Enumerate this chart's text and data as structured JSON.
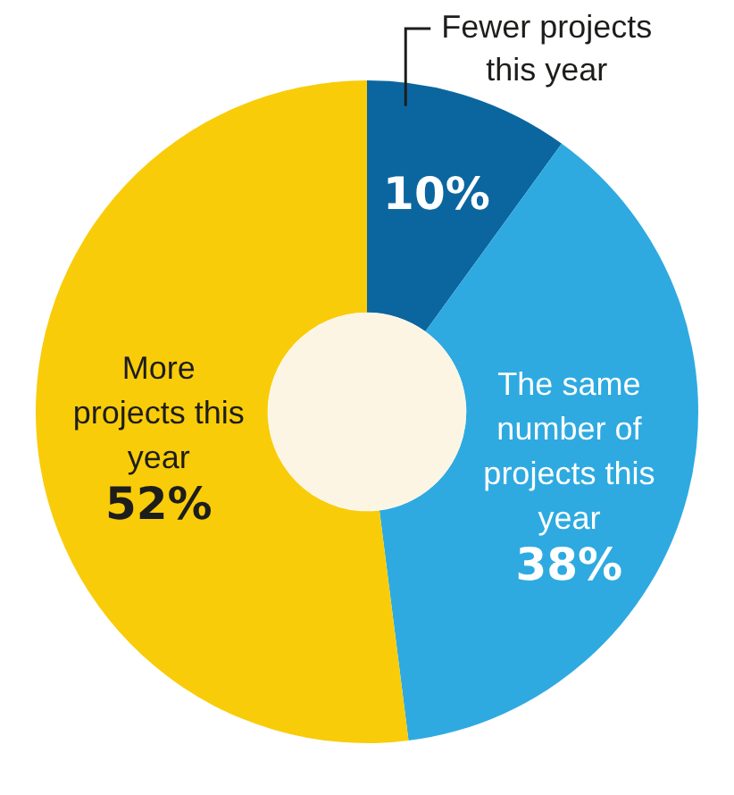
{
  "chart_data": {
    "type": "donut",
    "categories": [
      "Fewer projects this year",
      "The same number of projects this year",
      "More projects this year"
    ],
    "values": [
      10,
      38,
      52
    ],
    "colors": [
      "#0b66a0",
      "#2eaae1",
      "#f9cc0a"
    ],
    "value_labels": [
      "10%",
      "38%",
      "52%"
    ],
    "legend": false
  }
}
